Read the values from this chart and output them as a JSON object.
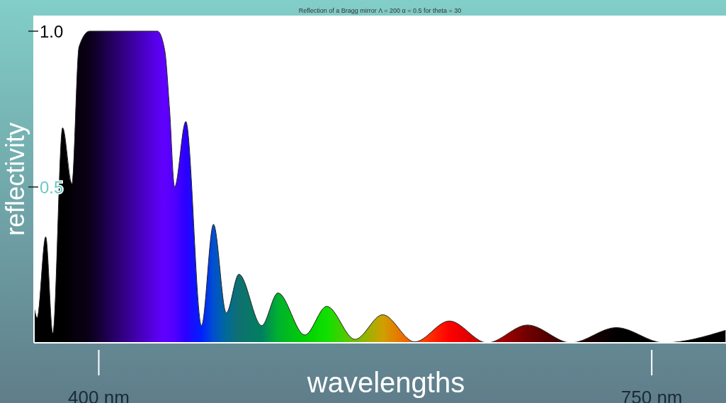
{
  "chart_data": {
    "type": "area",
    "title": "Reflection of a Bragg mirror Λ = 200 α = 0.5 for theta = 30",
    "xlabel": "wavelengths",
    "ylabel": "reflectivity",
    "xlim": [
      359,
      797
    ],
    "ylim": [
      0,
      1.05
    ],
    "xticks": [
      {
        "value": 400,
        "label": "400 nm"
      },
      {
        "value": 750,
        "label": "750 nm"
      }
    ],
    "yticks": [
      {
        "value": 0.5,
        "label": "0.5"
      },
      {
        "value": 1.0,
        "label": "1.0"
      }
    ],
    "x": [
      359.2,
      361.0,
      366.4,
      370.9,
      377.1,
      383.0,
      387.5,
      394.2,
      437.2,
      441.7,
      444.8,
      448.0,
      455.1,
      465.0,
      472.6,
      480.7,
      488.7,
      503.1,
      513.4,
      530.4,
      544.3,
      562.2,
      579.7,
      599.9,
      621.9,
      645.8,
      671.4,
      698.9,
      727.6,
      757.7,
      796.7
    ],
    "series": [
      {
        "color": "#222222",
        "values": [
          0.11,
          0.08,
          0.34,
          0.03,
          0.69,
          0.51,
          0.95,
          1.0,
          1.0,
          0.94,
          0.75,
          0.5,
          0.71,
          0.055,
          0.38,
          0.096,
          0.22,
          0.055,
          0.16,
          0.025,
          0.117,
          0.011,
          0.09,
          0.003,
          0.07,
          0.0,
          0.057,
          0.0,
          0.049,
          0.0,
          0.04
        ],
        "colors": [
          "#000000",
          "#000000",
          "#000000",
          "#000000",
          "#000000",
          "#050008",
          "#080010",
          "#0a0018",
          "#5a00f0",
          "#6000ff",
          "#5800ff",
          "#5000ff",
          "#2a00ff",
          "#0020ff",
          "#0050d0",
          "#006a9a",
          "#107070",
          "#008060",
          "#00b030",
          "#00d000",
          "#10e000",
          "#70c000",
          "#d0a000",
          "#ff5000",
          "#ff0000",
          "#c00000",
          "#700000",
          "#300000",
          "#000000",
          "#000000",
          "#000000"
        ]
      }
    ]
  }
}
